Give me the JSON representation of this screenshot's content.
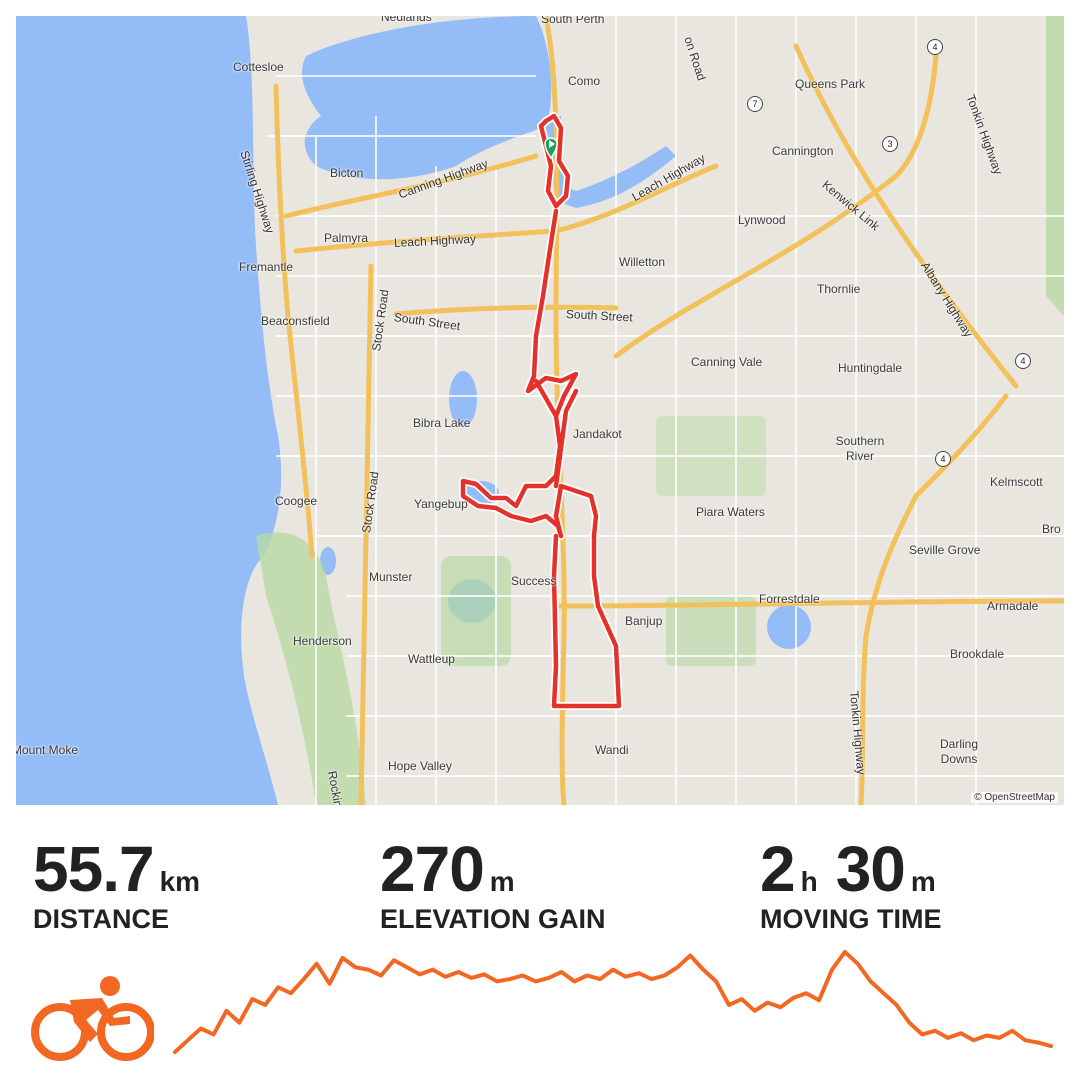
{
  "map": {
    "attribution": "© OpenStreetMap",
    "colors": {
      "water": "#94bcf6",
      "land": "#e9e6df",
      "route": "#e4322b",
      "major_road": "#f2c15b",
      "park": "#b8d9a4"
    },
    "places": [
      {
        "name": "Nedlands"
      },
      {
        "name": "South Perth"
      },
      {
        "name": "Cottesloe"
      },
      {
        "name": "Como"
      },
      {
        "name": "Queens Park"
      },
      {
        "name": "Bicton"
      },
      {
        "name": "Cannington"
      },
      {
        "name": "Palmyra"
      },
      {
        "name": "Lynwood"
      },
      {
        "name": "Fremantle"
      },
      {
        "name": "Willetton"
      },
      {
        "name": "Thornlie"
      },
      {
        "name": "Beaconsfield"
      },
      {
        "name": "Canning Vale"
      },
      {
        "name": "Huntingdale"
      },
      {
        "name": "Bibra Lake"
      },
      {
        "name": "Jandakot"
      },
      {
        "name": "Southern River"
      },
      {
        "name": "Coogee"
      },
      {
        "name": "Yangebup"
      },
      {
        "name": "Piara Waters"
      },
      {
        "name": "Kelmscott"
      },
      {
        "name": "Seville Grove"
      },
      {
        "name": "Munster"
      },
      {
        "name": "Success"
      },
      {
        "name": "Forrestdale"
      },
      {
        "name": "Armadale"
      },
      {
        "name": "Henderson"
      },
      {
        "name": "Banjup"
      },
      {
        "name": "Wattleup"
      },
      {
        "name": "Brookdale"
      },
      {
        "name": "Mount Moke"
      },
      {
        "name": "Wandi"
      },
      {
        "name": "Darling Downs"
      },
      {
        "name": "Hope Valley"
      },
      {
        "name": "Bro"
      }
    ],
    "roads": [
      {
        "name": "Stirling Highway"
      },
      {
        "name": "Canning Highway"
      },
      {
        "name": "Leach Highway"
      },
      {
        "name": "Leach Highway"
      },
      {
        "name": "South Street"
      },
      {
        "name": "South Street"
      },
      {
        "name": "Stock Road"
      },
      {
        "name": "Stock Road"
      },
      {
        "name": "Kenwick Link"
      },
      {
        "name": "Albany Highway"
      },
      {
        "name": "Tonkin Highway"
      },
      {
        "name": "Tonkin Highway"
      },
      {
        "name": "Rockingham"
      },
      {
        "name": "on Road"
      }
    ],
    "shields": [
      "4",
      "7",
      "3",
      "4",
      "4"
    ]
  },
  "stats": {
    "distance": {
      "value": "55.7",
      "unit": "km",
      "label": "DISTANCE"
    },
    "elevation": {
      "value": "270",
      "unit": "m",
      "label": "ELEVATION GAIN"
    },
    "moving_time": {
      "hours": "2",
      "hours_unit": "h",
      "minutes": "30",
      "minutes_unit": "m",
      "label": "MOVING TIME"
    }
  },
  "activity": {
    "type_icon": "cycling-icon",
    "accent": "#f26722"
  },
  "elevation_profile": {
    "values": [
      0,
      10,
      20,
      15,
      35,
      25,
      45,
      40,
      55,
      50,
      62,
      75,
      58,
      80,
      72,
      70,
      65,
      78,
      72,
      66,
      70,
      64,
      68,
      63,
      66,
      60,
      62,
      65,
      60,
      63,
      68,
      60,
      65,
      62,
      70,
      64,
      67,
      62,
      65,
      72,
      82,
      70,
      60,
      40,
      45,
      35,
      42,
      38,
      46,
      50,
      44,
      70,
      85,
      75,
      60,
      50,
      40,
      25,
      15,
      18,
      12,
      16,
      10,
      14,
      12,
      18,
      10,
      8,
      5
    ]
  }
}
